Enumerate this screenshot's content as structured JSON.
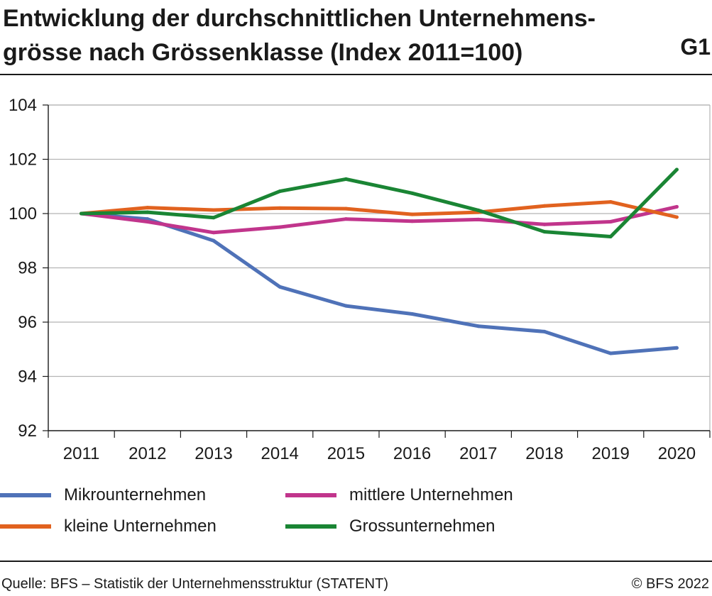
{
  "header": {
    "title": "Entwicklung der durchschnittlichen Unternehmens-grösse nach Grössenklasse (Index 2011=100)",
    "code": "G1"
  },
  "chart_data": {
    "type": "line",
    "title": "Entwicklung der durchschnittlichen Unternehmens-grösse nach Grössenklasse (Index 2011=100)",
    "xlabel": "",
    "ylabel": "",
    "categories": [
      "2011",
      "2012",
      "2013",
      "2014",
      "2015",
      "2016",
      "2017",
      "2018",
      "2019",
      "2020"
    ],
    "ylim": [
      92,
      104
    ],
    "yticks": [
      92,
      94,
      96,
      98,
      100,
      102,
      104
    ],
    "grid": true,
    "legend_position": "bottom",
    "series": [
      {
        "name": "Mikrounternehmen",
        "color": "#4f72b8",
        "values": [
          100.0,
          99.8,
          99.0,
          97.3,
          96.6,
          96.3,
          95.85,
          95.65,
          94.85,
          95.05
        ]
      },
      {
        "name": "mittlere Unternehmen",
        "color": "#c1358c",
        "values": [
          100.0,
          99.7,
          99.3,
          99.5,
          99.8,
          99.72,
          99.78,
          99.6,
          99.7,
          100.25
        ]
      },
      {
        "name": "kleine Unternehmen",
        "color": "#e1621f",
        "values": [
          100.0,
          100.22,
          100.13,
          100.2,
          100.18,
          99.97,
          100.05,
          100.28,
          100.43,
          99.87
        ]
      },
      {
        "name": "Grossunternehmen",
        "color": "#1a8534",
        "values": [
          100.0,
          100.05,
          99.85,
          100.82,
          101.27,
          100.75,
          100.12,
          99.33,
          99.15,
          101.62
        ]
      }
    ]
  },
  "legend": {
    "items": [
      {
        "label": "Mikrounternehmen",
        "color": "#4f72b8"
      },
      {
        "label": "mittlere Unternehmen",
        "color": "#c1358c"
      },
      {
        "label": "kleine Unternehmen",
        "color": "#e1621f"
      },
      {
        "label": "Grossunternehmen",
        "color": "#1a8534"
      }
    ]
  },
  "footer": {
    "source": "Quelle: BFS – Statistik der Unternehmensstruktur (STATENT)",
    "copyright": "© BFS 2022"
  }
}
